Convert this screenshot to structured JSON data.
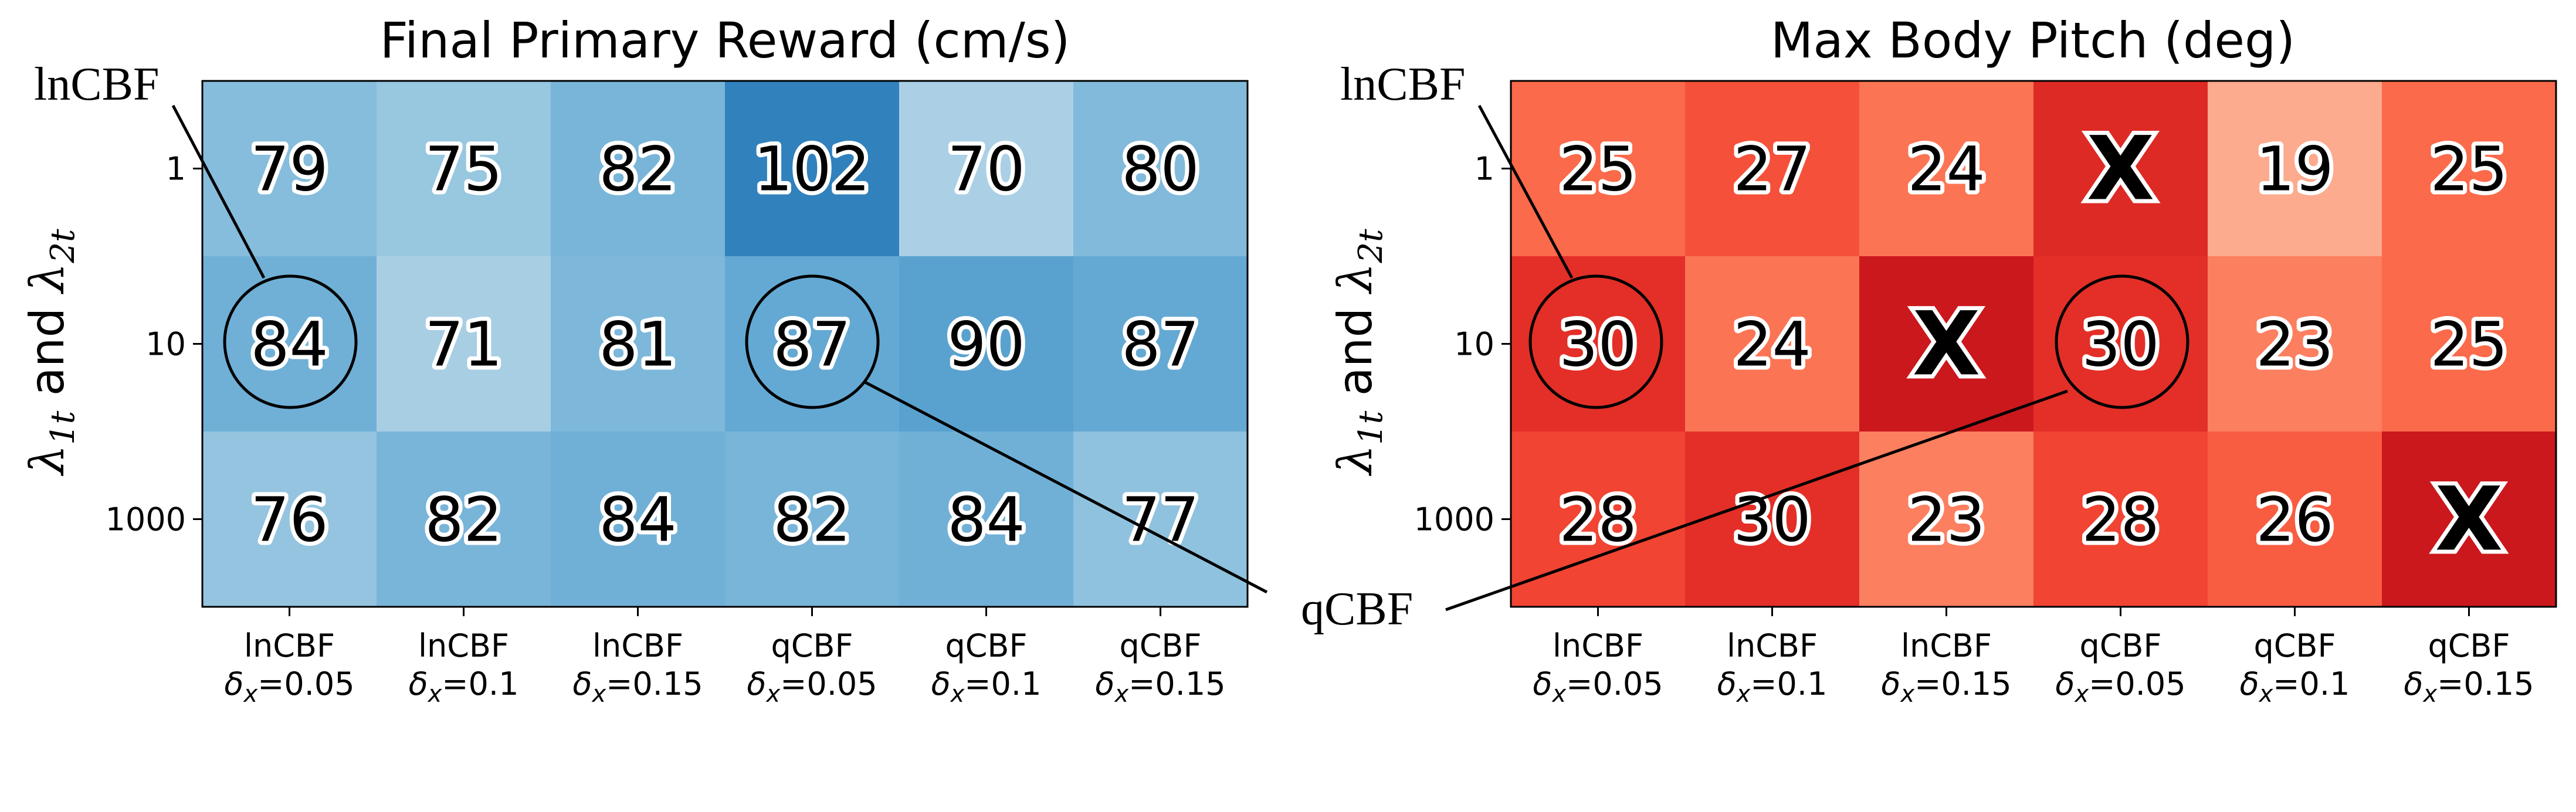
{
  "chart_data": [
    {
      "type": "heatmap",
      "title": "Final Primary Reward (cm/s)",
      "ylabel": "λ1t and λ2t",
      "ylabel_parts": {
        "lambda": "λ",
        "sub1": "1t",
        "and": " and ",
        "sub2": "2t"
      },
      "y_categories": [
        "1",
        "10",
        "1000"
      ],
      "x_categories": [
        {
          "line1": "lnCBF",
          "delta": "δ",
          "sub": "x",
          "value": "=0.05"
        },
        {
          "line1": "lnCBF",
          "delta": "δ",
          "sub": "x",
          "value": "=0.1"
        },
        {
          "line1": "lnCBF",
          "delta": "δ",
          "sub": "x",
          "value": "=0.15"
        },
        {
          "line1": "qCBF",
          "delta": "δ",
          "sub": "x",
          "value": "=0.05"
        },
        {
          "line1": "qCBF",
          "delta": "δ",
          "sub": "x",
          "value": "=0.1"
        },
        {
          "line1": "qCBF",
          "delta": "δ",
          "sub": "x",
          "value": "=0.15"
        }
      ],
      "values": [
        [
          79,
          75,
          82,
          102,
          70,
          80
        ],
        [
          84,
          71,
          81,
          87,
          90,
          87
        ],
        [
          76,
          82,
          84,
          82,
          84,
          77
        ]
      ],
      "colormap": "Blues",
      "color_range": [
        40,
        130
      ]
    },
    {
      "type": "heatmap",
      "title": "Max Body Pitch (deg)",
      "ylabel": "λ1t and λ2t",
      "ylabel_parts": {
        "lambda": "λ",
        "sub1": "1t",
        "and": " and ",
        "sub2": "2t"
      },
      "y_categories": [
        "1",
        "10",
        "1000"
      ],
      "x_categories": [
        {
          "line1": "lnCBF",
          "delta": "δ",
          "sub": "x",
          "value": "=0.05"
        },
        {
          "line1": "lnCBF",
          "delta": "δ",
          "sub": "x",
          "value": "=0.1"
        },
        {
          "line1": "lnCBF",
          "delta": "δ",
          "sub": "x",
          "value": "=0.15"
        },
        {
          "line1": "qCBF",
          "delta": "δ",
          "sub": "x",
          "value": "=0.05"
        },
        {
          "line1": "qCBF",
          "delta": "δ",
          "sub": "x",
          "value": "=0.1"
        },
        {
          "line1": "qCBF",
          "delta": "δ",
          "sub": "x",
          "value": "=0.15"
        }
      ],
      "values": [
        [
          25,
          27,
          24,
          null,
          19,
          25
        ],
        [
          30,
          24,
          null,
          30,
          23,
          25
        ],
        [
          28,
          30,
          23,
          28,
          26,
          null
        ]
      ],
      "failed_marker": "X",
      "failed_cell_colors": [
        "#dd2a25",
        "#cb181d",
        "#cb181d"
      ],
      "colormap": "Reds",
      "color_range": [
        10,
        40
      ]
    }
  ],
  "annotations": {
    "lncbf_left": "lnCBF",
    "lncbf_right": "lnCBF",
    "qcbf": "qCBF"
  }
}
